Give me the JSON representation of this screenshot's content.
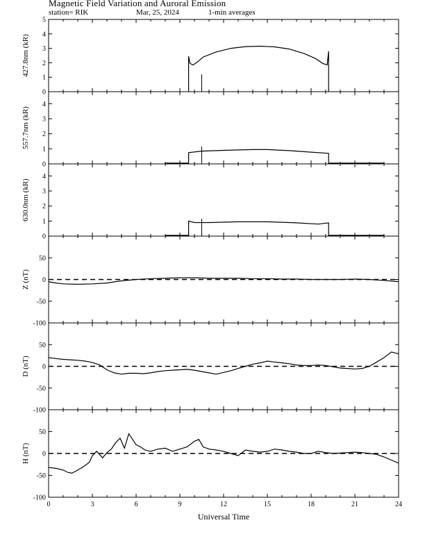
{
  "header": {
    "title": "Magnetic Field Variation and Auroral Emission",
    "station": "station= RIK",
    "date": "Mar, 25, 2024",
    "averaging": "1-min averages"
  },
  "chart_data": [
    {
      "type": "line",
      "ylabel": "427.8nm (kR)",
      "ylim": [
        0,
        5
      ],
      "yticks": [
        0,
        1,
        2,
        3,
        4,
        5
      ],
      "xlim": [
        0,
        24
      ],
      "series": [
        {
          "x": [
            9.6,
            9.6,
            9.7,
            9.9,
            10.2,
            10.6,
            11.5,
            12.5,
            13.5,
            14.5,
            15.5,
            16.5,
            17.5,
            18.3,
            18.8,
            19.1,
            19.2,
            19.2
          ],
          "values": [
            0,
            2.45,
            1.95,
            1.85,
            2.05,
            2.4,
            2.75,
            3.0,
            3.12,
            3.15,
            3.1,
            2.95,
            2.65,
            2.3,
            1.95,
            1.85,
            2.8,
            0
          ]
        }
      ],
      "vlines": [
        10.5
      ]
    },
    {
      "type": "line",
      "ylabel": "557.7nm (kR)",
      "ylim": [
        0,
        4.8
      ],
      "yticks": [
        0,
        1,
        2,
        3,
        4
      ],
      "xlim": [
        0,
        24
      ],
      "series": [
        {
          "x": [
            8,
            9.6,
            9.6,
            10.5,
            12,
            14,
            15,
            16.5,
            18,
            19.2,
            19.2,
            23
          ],
          "values": [
            0.05,
            0.05,
            0.75,
            0.85,
            0.9,
            0.95,
            0.95,
            0.88,
            0.78,
            0.7,
            0.05,
            0.05
          ]
        }
      ],
      "vlines": [
        10.5
      ]
    },
    {
      "type": "line",
      "ylabel": "630.0nm (kR)",
      "ylim": [
        0,
        4.8
      ],
      "yticks": [
        0,
        1,
        2,
        3,
        4
      ],
      "xlim": [
        0,
        24
      ],
      "series": [
        {
          "x": [
            8,
            9.6,
            9.6,
            10,
            11,
            13,
            15,
            17,
            18.5,
            19.2,
            19.2,
            23
          ],
          "values": [
            0.05,
            0.05,
            1.0,
            0.9,
            0.9,
            0.95,
            0.95,
            0.88,
            0.8,
            0.88,
            0.05,
            0.05
          ]
        }
      ],
      "vlines": [
        10.5
      ]
    },
    {
      "type": "line",
      "ylabel": "Z (nT)",
      "ylim": [
        -100,
        100
      ],
      "yticks": [
        -100,
        -50,
        0,
        50
      ],
      "xlim": [
        0,
        24
      ],
      "zero_line": true,
      "series": [
        {
          "x": [
            0,
            0.5,
            1,
            2,
            3,
            4,
            5,
            6,
            7,
            8,
            9,
            10,
            11,
            12,
            13,
            14,
            15,
            16,
            17,
            18,
            19,
            20,
            21,
            22,
            23,
            24
          ],
          "values": [
            -5,
            -8,
            -10,
            -11,
            -10,
            -8,
            -3,
            0,
            2,
            3,
            4,
            4,
            3,
            3,
            3,
            2,
            2,
            1,
            1,
            0,
            0,
            0,
            1,
            0,
            -2,
            -5
          ]
        }
      ]
    },
    {
      "type": "line",
      "ylabel": "D (nT)",
      "ylim": [
        -100,
        100
      ],
      "yticks": [
        -100,
        -50,
        0,
        50
      ],
      "xlim": [
        0,
        24
      ],
      "zero_line": true,
      "series": [
        {
          "x": [
            0,
            0.5,
            1,
            1.5,
            2,
            2.5,
            3,
            3.5,
            4,
            4.5,
            5,
            5.5,
            6,
            6.5,
            7,
            7.5,
            8,
            8.5,
            9,
            9.5,
            10,
            10.5,
            11,
            11.5,
            12,
            12.5,
            13,
            13.5,
            14,
            14.5,
            15,
            15.5,
            16,
            16.5,
            17,
            17.5,
            18,
            18.5,
            19,
            19.5,
            20,
            20.5,
            21,
            21.5,
            22,
            22.5,
            23,
            23.5,
            24
          ],
          "values": [
            20,
            18,
            16,
            15,
            14,
            12,
            9,
            3,
            -8,
            -15,
            -18,
            -16,
            -16,
            -17,
            -15,
            -12,
            -10,
            -9,
            -8,
            -7,
            -9,
            -12,
            -15,
            -18,
            -14,
            -10,
            -5,
            0,
            5,
            8,
            12,
            10,
            8,
            6,
            3,
            2,
            2,
            3,
            2,
            -1,
            -4,
            -5,
            -6,
            -5,
            0,
            10,
            20,
            33,
            29
          ]
        }
      ]
    },
    {
      "type": "line",
      "ylabel": "H (nT)",
      "ylim": [
        -100,
        100
      ],
      "yticks": [
        -100,
        -50,
        0,
        50
      ],
      "xlim": [
        0,
        24
      ],
      "xticks": [
        0,
        3,
        6,
        9,
        12,
        15,
        18,
        21,
        24
      ],
      "xlabel": "Universal Time",
      "zero_line": true,
      "series": [
        {
          "x": [
            0,
            0.5,
            1,
            1.3,
            1.6,
            2,
            2.4,
            2.8,
            3.0,
            3.3,
            3.7,
            4.0,
            4.3,
            4.6,
            4.9,
            5.2,
            5.5,
            5.8,
            6.0,
            6.3,
            6.6,
            7,
            7.5,
            8,
            8.5,
            9,
            9.5,
            10,
            10.3,
            10.6,
            11,
            11.5,
            12,
            12.5,
            13,
            13.5,
            14,
            14.5,
            15,
            15.5,
            16,
            16.5,
            17,
            17.5,
            18,
            18.5,
            19,
            19.5,
            20,
            20.5,
            21,
            21.5,
            22,
            22.5,
            23,
            23.5,
            24
          ],
          "values": [
            -32,
            -34,
            -38,
            -43,
            -45,
            -38,
            -30,
            -20,
            -5,
            5,
            -10,
            2,
            10,
            25,
            35,
            12,
            45,
            30,
            20,
            15,
            8,
            5,
            10,
            12,
            5,
            10,
            15,
            28,
            32,
            15,
            10,
            8,
            5,
            0,
            -5,
            8,
            5,
            3,
            5,
            10,
            8,
            5,
            3,
            0,
            0,
            5,
            2,
            0,
            1,
            2,
            3,
            2,
            0,
            -2,
            -8,
            -15,
            -22
          ]
        }
      ]
    }
  ]
}
